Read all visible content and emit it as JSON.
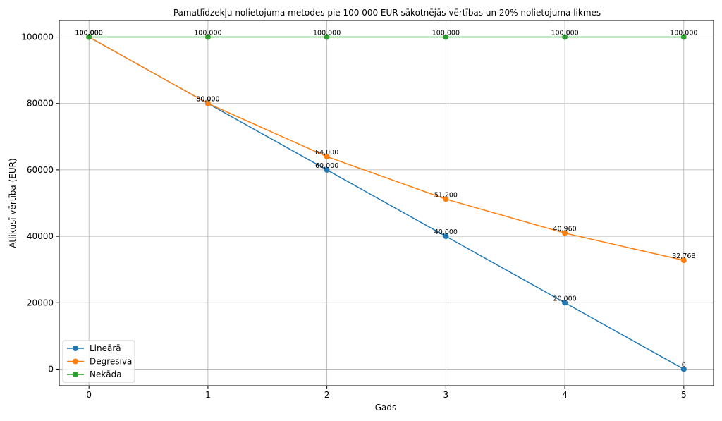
{
  "chart_data": {
    "type": "line",
    "title": "Pamatlīdzekļu nolietojuma metodes pie 100 000 EUR sākotnējās vērtības un 20% nolietojuma likmes",
    "xlabel": "Gads",
    "ylabel": "Atlikusī vērtība (EUR)",
    "x": [
      0,
      1,
      2,
      3,
      4,
      5
    ],
    "x_tick_labels": [
      "0",
      "1",
      "2",
      "3",
      "4",
      "5"
    ],
    "y_ticks": [
      0,
      20000,
      40000,
      60000,
      80000,
      100000
    ],
    "y_tick_labels": [
      "0",
      "20000",
      "40000",
      "60000",
      "80000",
      "100000"
    ],
    "xlim": [
      -0.25,
      5.25
    ],
    "ylim": [
      -5000,
      105000
    ],
    "grid": true,
    "legend_position": "lower-left",
    "series": [
      {
        "name": "Lineārā",
        "color": "#1f77b4",
        "values": [
          100000,
          80000,
          60000,
          40000,
          20000,
          0
        ],
        "labels": [
          "100,000",
          "80,000",
          "60,000",
          "40,000",
          "20,000",
          "0"
        ]
      },
      {
        "name": "Degresīvā",
        "color": "#ff7f0e",
        "values": [
          100000,
          80000,
          64000,
          51200,
          40960,
          32768
        ],
        "labels": [
          "100,000",
          "80,000",
          "64,000",
          "51,200",
          "40,960",
          "32,768"
        ]
      },
      {
        "name": "Nekāda",
        "color": "#2ca02c",
        "values": [
          100000,
          100000,
          100000,
          100000,
          100000,
          100000
        ],
        "labels": [
          "100,000",
          "100,000",
          "100,000",
          "100,000",
          "100,000",
          "100,000"
        ]
      }
    ]
  }
}
